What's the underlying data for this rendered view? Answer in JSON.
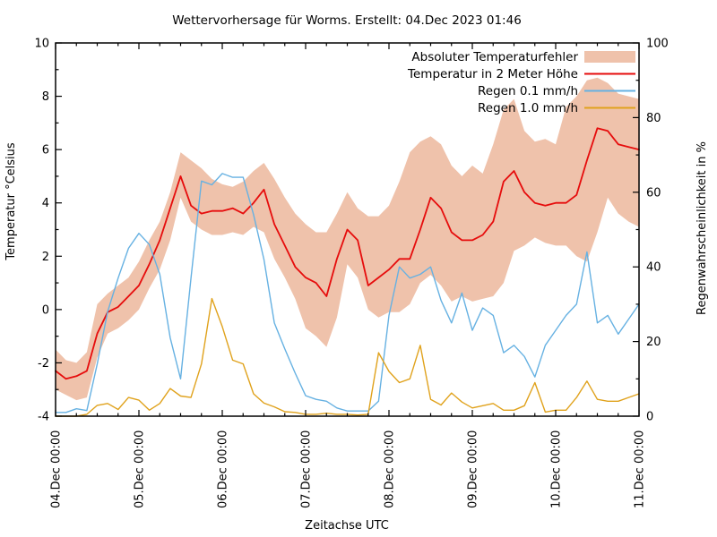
{
  "title": "Wettervorhersage für Worms. Erstellt: 04.Dec 2023 01:46",
  "axes": {
    "x_label": "Zeitachse UTC",
    "y_left_label": "Temperatur °Celsius",
    "y_right_label": "Regenwahrscheinlichkeit in %",
    "x_tick_labels": [
      "04.Dec 00:00",
      "05.Dec 00:00",
      "06.Dec 00:00",
      "07.Dec 00:00",
      "08.Dec 00:00",
      "09.Dec 00:00",
      "10.Dec 00:00",
      "11.Dec 00:00"
    ],
    "y_left_ticks": [
      -4,
      -2,
      0,
      2,
      4,
      6,
      8,
      10
    ],
    "y_right_ticks": [
      0,
      20,
      40,
      60,
      80,
      100
    ],
    "y_left_range": [
      -4,
      10
    ],
    "y_right_range": [
      0,
      100
    ]
  },
  "legend": [
    {
      "label": "Absoluter Temperaturfehler",
      "swatch": "band",
      "color": "#efc2ab"
    },
    {
      "label": "Temperatur in 2 Meter Höhe",
      "swatch": "line",
      "color": "#e60c0c"
    },
    {
      "label": "Regen 0.1 mm/h",
      "swatch": "line",
      "color": "#66b1e2"
    },
    {
      "label": "Regen 1.0 mm/h",
      "swatch": "line",
      "color": "#e0a21c"
    }
  ],
  "colors": {
    "band": "#efc2ab",
    "temperature": "#e60c0c",
    "rain01": "#66b1e2",
    "rain10": "#e0a21c",
    "axis": "#000000",
    "background": "#ffffff"
  },
  "chart_data": {
    "type": "line",
    "title": "Wettervorhersage für Worms. Erstellt: 04.Dec 2023 01:46",
    "xlabel": "Zeitachse UTC",
    "ylabel_left": "Temperatur °Celsius",
    "ylabel_right": "Regenwahrscheinlichkeit in %",
    "x_start": "04.Dec 00:00",
    "x_end": "11.Dec 00:00",
    "time_step_hours": 3,
    "ylim_left": [
      -4,
      10
    ],
    "ylim_right": [
      0,
      100
    ],
    "grid": false,
    "legend_position": "top-right-inside",
    "series": [
      {
        "name": "Absoluter Temperaturfehler",
        "kind": "band",
        "axis": "left",
        "unit": "°C",
        "color": "#efc2ab",
        "low": [
          -3.0,
          -3.2,
          -3.4,
          -3.3,
          -1.8,
          -0.9,
          -0.7,
          -0.4,
          0.0,
          0.8,
          1.5,
          2.6,
          4.2,
          3.3,
          3.0,
          2.8,
          2.8,
          2.9,
          2.8,
          3.1,
          2.9,
          1.9,
          1.2,
          0.4,
          -0.7,
          -1.0,
          -1.4,
          -0.3,
          1.7,
          1.2,
          0.0,
          -0.3,
          -0.1,
          -0.1,
          0.2,
          1.0,
          1.3,
          0.9,
          0.3,
          0.5,
          0.3,
          0.4,
          0.5,
          1.0,
          2.2,
          2.4,
          2.7,
          2.5,
          2.4,
          2.4,
          2.0,
          1.8,
          2.9,
          4.2,
          3.6,
          3.3,
          3.1
        ],
        "high": [
          -1.5,
          -1.9,
          -2.0,
          -1.6,
          0.2,
          0.6,
          0.9,
          1.2,
          1.8,
          2.6,
          3.3,
          4.4,
          5.9,
          5.6,
          5.3,
          4.9,
          4.7,
          4.6,
          4.8,
          5.2,
          5.5,
          4.9,
          4.2,
          3.6,
          3.2,
          2.9,
          2.9,
          3.6,
          4.4,
          3.8,
          3.5,
          3.5,
          3.9,
          4.8,
          5.9,
          6.3,
          6.5,
          6.2,
          5.4,
          5.0,
          5.4,
          5.1,
          6.2,
          7.5,
          7.9,
          6.7,
          6.3,
          6.4,
          6.2,
          7.6,
          8.0,
          8.6,
          8.7,
          8.5,
          8.1,
          8.0,
          7.9
        ]
      },
      {
        "name": "Temperatur in 2 Meter Höhe",
        "kind": "line",
        "axis": "left",
        "unit": "°C",
        "color": "#e60c0c",
        "values": [
          -2.3,
          -2.6,
          -2.5,
          -2.3,
          -0.9,
          -0.1,
          0.1,
          0.5,
          0.9,
          1.7,
          2.6,
          3.8,
          5.0,
          3.9,
          3.6,
          3.7,
          3.7,
          3.8,
          3.6,
          4.0,
          4.5,
          3.2,
          2.4,
          1.6,
          1.2,
          1.0,
          0.5,
          1.9,
          3.0,
          2.6,
          0.9,
          1.2,
          1.5,
          1.9,
          1.9,
          3.0,
          4.2,
          3.8,
          2.9,
          2.6,
          2.6,
          2.8,
          3.3,
          4.8,
          5.2,
          4.4,
          4.0,
          3.9,
          4.0,
          4.0,
          4.3,
          5.6,
          6.8,
          6.7,
          6.2,
          6.1,
          6.0
        ]
      },
      {
        "name": "Regen 0.1 mm/h",
        "kind": "line",
        "axis": "right",
        "unit": "%",
        "color": "#66b1e2",
        "values": [
          1,
          1,
          2,
          1.5,
          14,
          28,
          37,
          45,
          49,
          46,
          38,
          21,
          10,
          37,
          63,
          62,
          65,
          64,
          64,
          54,
          42,
          25,
          18,
          11.5,
          5.5,
          4.5,
          4,
          2.2,
          1.4,
          1.4,
          1.4,
          4,
          27,
          40,
          37,
          38,
          40,
          31,
          25,
          33,
          23,
          29,
          27,
          17,
          19,
          16,
          10.5,
          19,
          23,
          27,
          30,
          44,
          25,
          27,
          22,
          26,
          30
        ]
      },
      {
        "name": "Regen 1.0 mm/h",
        "kind": "line",
        "axis": "right",
        "unit": "%",
        "color": "#e0a21c",
        "values": [
          0,
          0,
          0,
          0.5,
          2.9,
          3.4,
          1.8,
          5,
          4.3,
          1.6,
          3.4,
          7.4,
          5.4,
          5,
          14,
          31.5,
          24,
          15,
          14,
          6,
          3.5,
          2.5,
          1.2,
          1,
          0.5,
          0.5,
          0.8,
          0.5,
          0.5,
          0.3,
          0.5,
          17,
          12,
          9,
          10,
          19,
          4.5,
          3,
          6.2,
          3.8,
          2.2,
          2.8,
          3.4,
          1.6,
          1.6,
          2.8,
          9,
          1.1,
          1.6,
          1.6,
          5,
          9.4,
          4.5,
          4,
          4,
          5,
          6
        ]
      }
    ]
  }
}
